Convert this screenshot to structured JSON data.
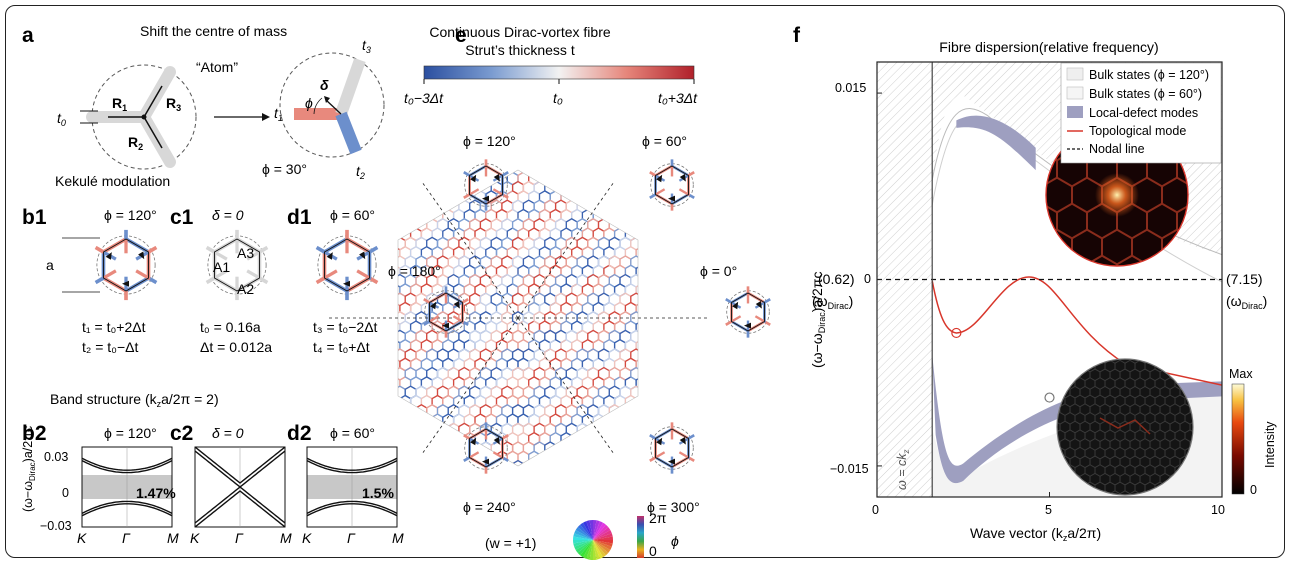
{
  "panel_a": {
    "letter": "a",
    "title": "Shift the centre of mass",
    "atom": "“Atom”",
    "r1": "R",
    "r1_sub": "1",
    "r2": "R",
    "r2_sub": "2",
    "r3": "R",
    "r3_sub": "3",
    "t0": "t",
    "t0_sub": "0",
    "t1": "t",
    "t1_sub": "1",
    "t2": "t",
    "t2_sub": "2",
    "t3": "t",
    "t3_sub": "3",
    "delta": "δ",
    "phi": "ϕ",
    "phi_value": "ϕ = 30°",
    "kekule": "Kekulé modulation"
  },
  "panel_b1": {
    "letter": "b1",
    "phi": "ϕ = 120°",
    "a_label": "a",
    "eq1": "t₁ = t₀+2Δt",
    "eq2": "t₂ = t₀−Δt"
  },
  "panel_c1": {
    "letter": "c1",
    "delta": "δ = 0",
    "A1": "A1",
    "A2": "A2",
    "A3": "A3",
    "eq1": "t₀ = 0.16a",
    "eq2": "Δt = 0.012a"
  },
  "panel_d1": {
    "letter": "d1",
    "phi": "ϕ = 60°",
    "eq1": "t₃ = t₀−2Δt",
    "eq2": "t₄ = t₀+Δt"
  },
  "band": {
    "title": "Band structure (k",
    "title_sub": "z",
    "title_tail": "a/2π = 2)",
    "ylabel": "(ω−ω",
    "ylabel_sub": "Dirac",
    "ylabel_tail": ")a/2πc",
    "yticks": [
      "0.03",
      "0",
      "−0.03"
    ],
    "xticks": [
      "K",
      "Γ",
      "M"
    ],
    "b2": {
      "letter": "b2",
      "phi": "ϕ = 120°",
      "gap": "1.47%"
    },
    "c2": {
      "letter": "c2",
      "delta": "δ = 0"
    },
    "d2": {
      "letter": "d2",
      "phi": "ϕ = 60°",
      "gap": "1.5%"
    }
  },
  "panel_e": {
    "letter": "e",
    "title1": "Continuous Dirac-vortex fibre",
    "title2": "Strut’s thickness t",
    "cb_left": "t₀−3Δt",
    "cb_mid": "t₀",
    "cb_right": "t₀+3Δt",
    "angles": [
      "ϕ = 120°",
      "ϕ = 60°",
      "ϕ = 180°",
      "ϕ = 0°",
      "ϕ = 240°",
      "ϕ = 300°"
    ],
    "winding": "(w = +1)",
    "phase_top": "2π",
    "phase_bottom": "0",
    "phase_label": "ϕ"
  },
  "panel_f": {
    "letter": "f",
    "title": "Fibre dispersion(relative frequency)",
    "ylabel": "(ω−ω",
    "ylabel_sub": "Dirac",
    "ylabel_tail": ")a/2πc",
    "xlabel": "Wave vector (k",
    "xlabel_sub": "z",
    "xlabel_tail": "a/2π)",
    "yticks": [
      "0.015",
      "0",
      "−0.015"
    ],
    "xticks": [
      "0",
      "5",
      "10"
    ],
    "left_val": "(0.62)",
    "right_val": "(7.15)",
    "omega_dirac": "(ω",
    "omega_dirac_sub": "Dirac",
    "light_line": "ω = ck",
    "light_line_sub": "z",
    "legend": [
      "Bulk states (ϕ = 120°)",
      "Bulk states (ϕ = 60°)",
      "Local-defect modes",
      "Topological mode",
      "Nodal line"
    ],
    "intensity_max": "Max",
    "intensity_min": "0",
    "intensity_label": "Intensity",
    "colors": {
      "topological": "#d8362b",
      "defect": "#9e9fc0",
      "bulk": "#dcdcdc"
    }
  }
}
